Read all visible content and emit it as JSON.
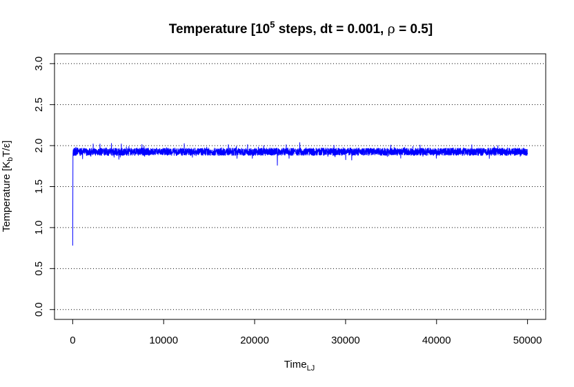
{
  "chart_data": {
    "type": "line",
    "title": {
      "prefix": "Temperature [10",
      "superscript": "5",
      "middle": " steps, dt = 0.001, ",
      "symbol": "ρ",
      "suffix": " = 0.5]"
    },
    "xlabel": {
      "base": "Time",
      "subscript": "LJ"
    },
    "ylabel": {
      "prefix": "Temperature [K",
      "subscript": "b",
      "suffix": "T/ε]"
    },
    "xlim": [
      -2000,
      52000
    ],
    "ylim": [
      -0.12,
      3.12
    ],
    "x_ticks": [
      0,
      10000,
      20000,
      30000,
      40000,
      50000
    ],
    "x_tick_labels": [
      "0",
      "10000",
      "20000",
      "30000",
      "40000",
      "50000"
    ],
    "y_ticks": [
      0.0,
      0.5,
      1.0,
      1.5,
      2.0,
      2.5,
      3.0
    ],
    "y_tick_labels": [
      "0.0",
      "0.5",
      "1.0",
      "1.5",
      "2.0",
      "2.5",
      "3.0"
    ],
    "grid": {
      "horizontal": true,
      "style": "dotted"
    },
    "legend": "none",
    "series": [
      {
        "color": "#0000ff",
        "x": [
          0,
          30,
          60,
          100,
          200,
          500,
          1000,
          1500,
          2000,
          2500,
          3000,
          3500,
          4000,
          4500,
          5000,
          5500,
          6000,
          6500,
          7000,
          7500,
          8000,
          8500,
          9000,
          9500,
          10000,
          10500,
          11000,
          11500,
          12000,
          12500,
          13000,
          13500,
          14000,
          14500,
          15000,
          15500,
          16000,
          16500,
          17000,
          17500,
          18000,
          18500,
          19000,
          19500,
          20000,
          20500,
          21000,
          21500,
          22000,
          22500,
          23000,
          23500,
          24000,
          24500,
          25000,
          25500,
          26000,
          26500,
          27000,
          27500,
          28000,
          28500,
          29000,
          29500,
          30000,
          30500,
          31000,
          31500,
          32000,
          32500,
          33000,
          33500,
          34000,
          34500,
          35000,
          35500,
          36000,
          36500,
          37000,
          37500,
          38000,
          38500,
          39000,
          39500,
          40000,
          40500,
          41000,
          41500,
          42000,
          42500,
          43000,
          43500,
          44000,
          44500,
          45000,
          45500,
          46000,
          46500,
          47000,
          47500,
          48000,
          48500,
          49000,
          49500,
          50000
        ],
        "y": [
          0.78,
          1.9,
          1.95,
          1.92,
          1.88,
          1.97,
          1.9,
          1.94,
          1.87,
          1.95,
          2.02,
          1.89,
          1.93,
          1.91,
          1.96,
          1.88,
          1.92,
          1.95,
          1.9,
          1.97,
          1.89,
          1.93,
          1.91,
          1.94,
          1.92,
          1.89,
          1.95,
          1.9,
          1.96,
          1.91,
          1.88,
          1.94,
          1.92,
          1.97,
          1.89,
          1.93,
          1.9,
          1.95,
          1.91,
          1.88,
          1.99,
          1.92,
          1.9,
          1.95,
          1.93,
          1.89,
          2.0,
          1.91,
          1.94,
          1.76,
          1.92,
          1.96,
          1.89,
          1.93,
          1.97,
          1.9,
          1.94,
          1.88,
          1.95,
          1.92,
          1.91,
          1.96,
          1.89,
          1.94,
          1.92,
          1.97,
          1.9,
          1.93,
          1.95,
          1.88,
          1.94,
          1.91,
          1.96,
          1.92,
          1.89,
          1.95,
          1.93,
          1.98,
          1.9,
          1.94,
          1.91,
          1.87,
          1.95,
          1.92,
          1.9,
          1.96,
          1.93,
          1.89,
          1.94,
          1.91,
          1.95,
          1.9,
          1.93,
          1.96,
          1.89,
          1.92,
          1.94,
          1.91,
          1.88,
          1.95,
          1.92,
          1.9,
          1.96,
          1.93,
          1.91
        ]
      }
    ]
  }
}
